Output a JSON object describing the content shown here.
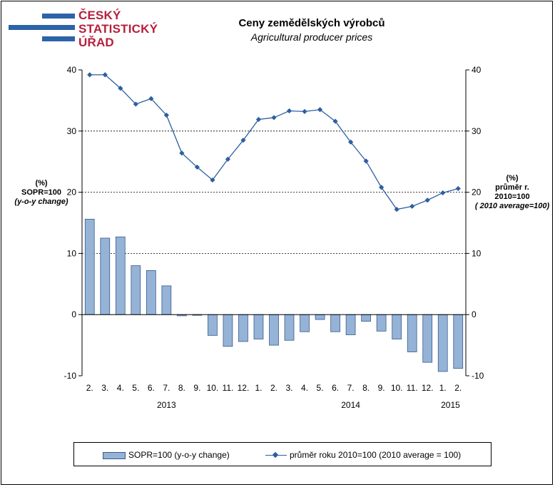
{
  "logo": {
    "line1": "ČESKÝ",
    "line2": "STATISTICKÝ",
    "line3": "ÚŘAD",
    "color": "#b51f3c",
    "bar_color": "#2d63a7"
  },
  "chart_data": {
    "type": "bar+line",
    "title": "Ceny zemědělských  výrobců",
    "subtitle": "Agricultural producer prices",
    "left_axis_label": [
      "(%)",
      "SOPR=100",
      "(y-o-y change)"
    ],
    "right_axis_label": [
      "(%)",
      "průměr r.",
      "2010=100",
      "( 2010 average=100)"
    ],
    "ylim": [
      -10,
      40
    ],
    "yticks": [
      -10,
      0,
      10,
      20,
      30,
      40
    ],
    "ytick_labels": [
      "-10",
      "0",
      "10",
      "20",
      "30",
      "40"
    ],
    "grid": "horizontal dotted at 10, 20, 30",
    "categories": [
      "2.",
      "3.",
      "4.",
      "5.",
      "6.",
      "7.",
      "8.",
      "9.",
      "10.",
      "11.",
      "12.",
      "1.",
      "2.",
      "3.",
      "4.",
      "5.",
      "6.",
      "7.",
      "8.",
      "9.",
      "10.",
      "11.",
      "12.",
      "1.",
      "2."
    ],
    "year_labels": [
      {
        "label": "2013",
        "at_index": 5
      },
      {
        "label": "2014",
        "at_index": 17
      },
      {
        "label": "2015",
        "at_index": 23.5
      }
    ],
    "series": [
      {
        "name": "SOPR=100 (y-o-y change)",
        "type": "bar",
        "axis": "left",
        "color": "#95b3d7",
        "values": [
          15.6,
          12.5,
          12.7,
          8.0,
          7.2,
          4.7,
          -0.2,
          -0.1,
          -3.4,
          -5.2,
          -4.4,
          -4.0,
          -5.0,
          -4.2,
          -2.8,
          -0.8,
          -2.8,
          -3.3,
          -1.1,
          -2.7,
          -4.0,
          -6.1,
          -7.8,
          -9.3,
          -8.8
        ]
      },
      {
        "name": "průměr roku 2010=100 (2010 average = 100)",
        "type": "line",
        "axis": "right",
        "color": "#2c5fa0",
        "values": [
          39.2,
          39.2,
          37.0,
          34.4,
          35.3,
          32.6,
          26.4,
          24.1,
          22.0,
          25.4,
          28.5,
          31.9,
          32.2,
          33.3,
          33.2,
          33.5,
          31.6,
          28.2,
          25.1,
          20.8,
          17.2,
          17.7,
          18.7,
          19.9,
          20.6
        ]
      }
    ]
  }
}
